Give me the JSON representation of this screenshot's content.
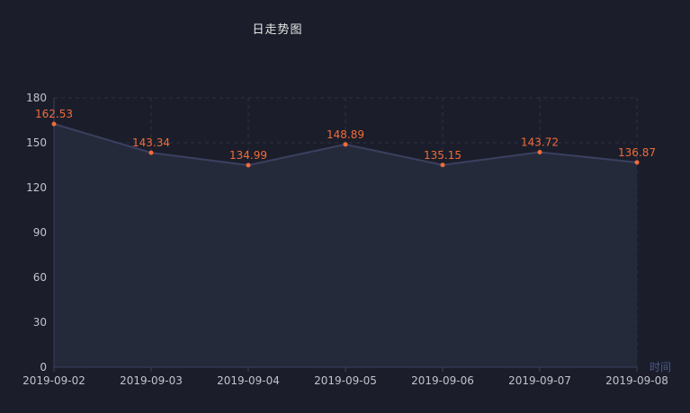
{
  "chart_data": {
    "type": "area",
    "title": "日走势图",
    "xlabel": "时间",
    "ylabel": "",
    "x": [
      "2019-09-02",
      "2019-09-03",
      "2019-09-04",
      "2019-09-05",
      "2019-09-06",
      "2019-09-07",
      "2019-09-08"
    ],
    "values": [
      162.53,
      143.34,
      134.99,
      148.89,
      135.15,
      143.72,
      136.87
    ],
    "data_labels": [
      "162.53",
      "143.34",
      "134.99",
      "148.89",
      "135.15",
      "143.72",
      "136.87"
    ],
    "ylim": [
      0,
      180
    ],
    "yticks": [
      0,
      30,
      60,
      90,
      120,
      150,
      180
    ],
    "grid": true,
    "colors": {
      "background": "#1b1e2a",
      "line": "#3b4060",
      "area": "#252a3b",
      "point": "#f26b3a",
      "label": "#f26b3a",
      "axis_text": "#c0c4cc",
      "xlabel_text": "#4a5a8a",
      "grid": "#2e3242"
    }
  }
}
